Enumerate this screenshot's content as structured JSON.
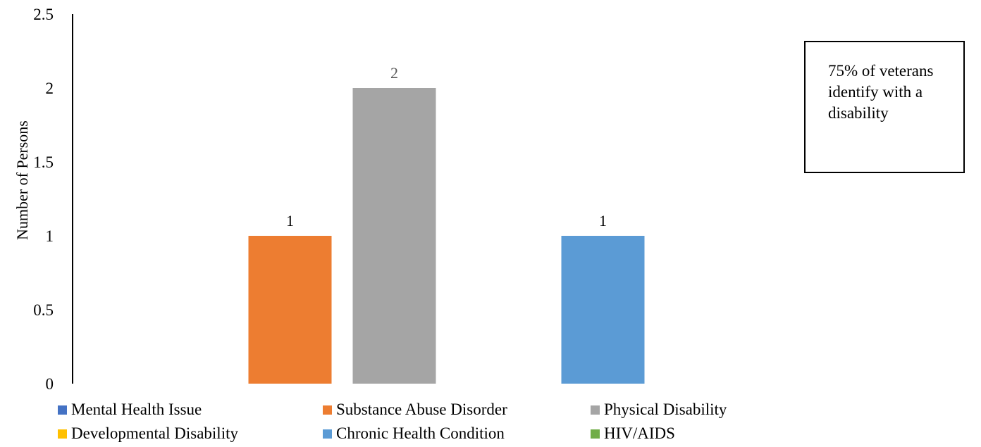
{
  "chart_data": {
    "type": "bar",
    "ylabel": "Number of Persons",
    "ylim": [
      0,
      2.5
    ],
    "yticks": [
      "0",
      "0.5",
      "1",
      "1.5",
      "2",
      "2.5"
    ],
    "grid": false,
    "legend_position": "bottom",
    "series": [
      {
        "name": "Mental Health Issue",
        "value": 0,
        "color": "#4472C4"
      },
      {
        "name": "Substance Abuse Disorder",
        "value": 1,
        "color": "#ED7D31",
        "label": "1"
      },
      {
        "name": "Physical Disability",
        "value": 2,
        "color": "#A5A5A5",
        "label": "2"
      },
      {
        "name": "Developmental Disability",
        "value": 0,
        "color": "#FFC000"
      },
      {
        "name": "Chronic Health Condition",
        "value": 1,
        "color": "#5B9BD5",
        "label": "1"
      },
      {
        "name": "HIV/AIDS",
        "value": 0,
        "color": "#70AD47"
      }
    ]
  },
  "annotation": {
    "text": "75% of veterans identify with a disability"
  }
}
